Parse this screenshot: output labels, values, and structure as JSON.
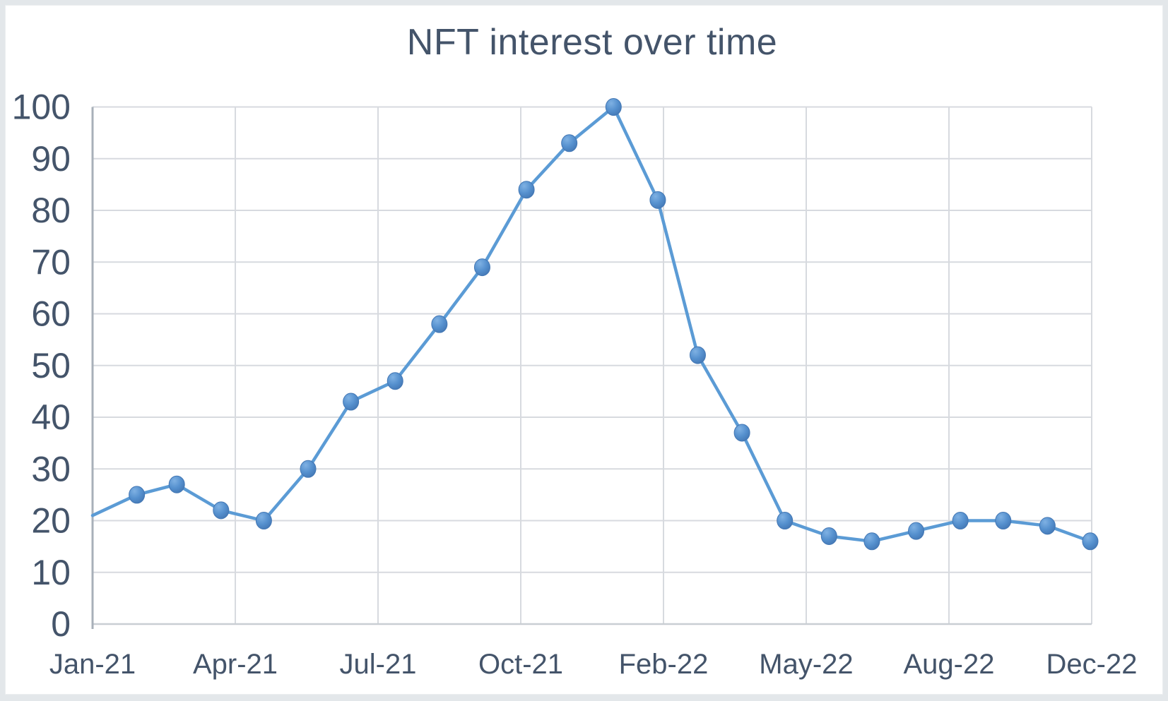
{
  "chart_data": {
    "type": "line",
    "title": "NFT interest over time",
    "x": [
      "Jan-21",
      "Feb-21",
      "Mar-21",
      "Apr-21",
      "May-21",
      "Jun-21",
      "Jul-21",
      "Aug-21",
      "Sep-21",
      "Oct-21",
      "Nov-21",
      "Dec-21",
      "Jan-22",
      "Feb-22",
      "Mar-22",
      "Apr-22",
      "May-22",
      "Jun-22",
      "Jul-22",
      "Aug-22",
      "Sep-22",
      "Oct-22",
      "Nov-22",
      "Dec-22"
    ],
    "values": [
      21,
      25,
      27,
      22,
      20,
      30,
      43,
      47,
      58,
      69,
      84,
      93,
      100,
      82,
      52,
      37,
      20,
      17,
      16,
      18,
      20,
      20,
      19,
      16
    ],
    "x_tick_labels": [
      "Jan-21",
      "Apr-21",
      "Jul-21",
      "Oct-21",
      "Feb-22",
      "May-22",
      "Aug-22",
      "Dec-22"
    ],
    "x_tick_days": [
      0,
      100,
      200,
      300,
      400,
      500,
      600,
      700
    ],
    "x_axis_span_days": 700,
    "y_ticks": [
      0,
      10,
      20,
      30,
      40,
      50,
      60,
      70,
      80,
      90,
      100
    ],
    "ylim": [
      0,
      100
    ],
    "grid": true,
    "legend": false,
    "marker": "circle",
    "first_marker_hidden": true,
    "series_name": "NFT interest"
  },
  "colors": {
    "line": "#5B9BD5",
    "marker_gradient_light": "#7FB1E3",
    "marker_gradient_mid": "#5590CE",
    "marker_gradient_dark": "#4377B4",
    "marker_stroke": "#4377B4",
    "gridline": "#D7DADF",
    "y_axis_line": "#A8B0B9",
    "x_axis_line": "#C9CED3",
    "text": "#44546A",
    "frame_background": "#E3E7EA",
    "chart_background": "#FFFFFF"
  }
}
